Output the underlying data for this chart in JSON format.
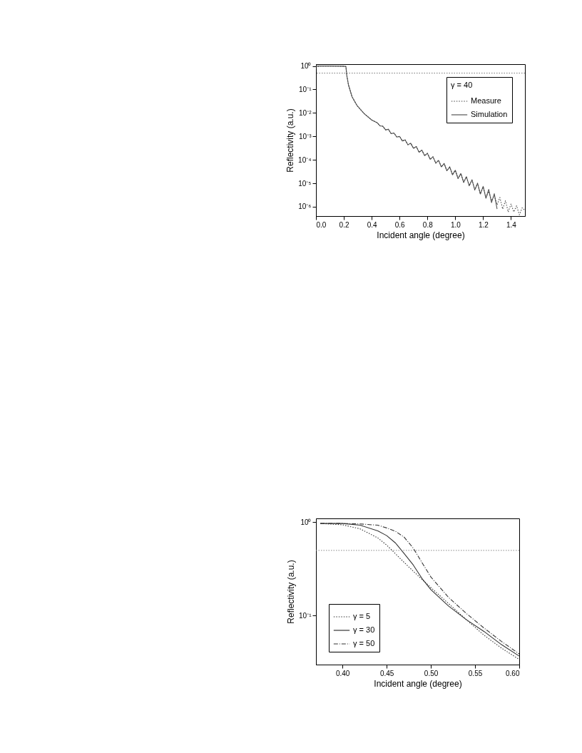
{
  "chart_data": [
    {
      "type": "line",
      "xlabel": "Incident angle (degree)",
      "ylabel": "Reflectivity (a.u.)",
      "legend_title": "γ = 40",
      "log": "y",
      "grid": false,
      "legend": "top right",
      "xlim": [
        0,
        1.5
      ],
      "ylim": [
        4e-07,
        1.2
      ],
      "xticks": [
        {
          "value": 0,
          "label": "0.0"
        },
        {
          "value": 0.2,
          "label": "0.2"
        },
        {
          "value": 0.4,
          "label": "0.4"
        },
        {
          "value": 0.6,
          "label": "0.6"
        },
        {
          "value": 0.8,
          "label": "0.8"
        },
        {
          "value": 1,
          "label": "1.0"
        },
        {
          "value": 1.2,
          "label": "1.2"
        },
        {
          "value": 1.4,
          "label": "1.4"
        }
      ],
      "yticks": [
        {
          "value": 1,
          "label": "10⁰"
        },
        {
          "value": 0.1,
          "label": "10⁻¹"
        },
        {
          "value": 0.01,
          "label": "10⁻²"
        },
        {
          "value": 0.001,
          "label": "10⁻³"
        },
        {
          "value": 0.0001,
          "label": "10⁻⁴"
        },
        {
          "value": 1e-05,
          "label": "10⁻⁵"
        },
        {
          "value": 1e-06,
          "label": "10⁻⁶"
        }
      ],
      "ref_lines": [
        {
          "axis": "y",
          "value": 0.5,
          "color": "#777777",
          "line_style": "dotted"
        }
      ],
      "series": [
        {
          "name": "Measure",
          "color": "#444444",
          "line_style": "dotted",
          "x": [
            0,
            0.02,
            0.1,
            0.2,
            0.215,
            0.221,
            0.233,
            0.259,
            0.294,
            0.346,
            0.4,
            0.44,
            0.46,
            0.48,
            0.5,
            0.52,
            0.54,
            0.56,
            0.58,
            0.6,
            0.62,
            0.64,
            0.66,
            0.68,
            0.7,
            0.72,
            0.74,
            0.76,
            0.78,
            0.8,
            0.82,
            0.84,
            0.86,
            0.88,
            0.9,
            0.92,
            0.94,
            0.96,
            0.98,
            1,
            1.02,
            1.04,
            1.06,
            1.08,
            1.1,
            1.12,
            1.14,
            1.16,
            1.18,
            1.2,
            1.22,
            1.24,
            1.26,
            1.28,
            1.3,
            1.32,
            1.34,
            1.36,
            1.38,
            1.4,
            1.42,
            1.44,
            1.46,
            1.48,
            1.5
          ],
          "values": [
            0.8,
            1,
            1,
            0.98,
            0.95,
            0.41,
            0.16,
            0.049,
            0.021,
            0.0093,
            0.005,
            0.0038,
            0.0028,
            0.0027,
            0.0019,
            0.002,
            0.0013,
            0.0014,
            0.00093,
            0.001,
            0.00064,
            0.00071,
            0.00044,
            0.00051,
            0.00031,
            0.00037,
            0.00021,
            0.00026,
            0.00015,
            0.00019,
            0.000105,
            0.000135,
            7.2e-05,
            9.5e-05,
            5e-05,
            6.9e-05,
            3.4e-05,
            5e-05,
            2.3e-05,
            3.6e-05,
            1.6e-05,
            2.6e-05,
            1.1e-05,
            1.9e-05,
            7.8e-06,
            1.4e-05,
            5.2e-06,
            1e-05,
            3.5e-06,
            7e-06,
            2.5e-06,
            4.5e-06,
            1.8e-06,
            3e-06,
            1.2e-06,
            2.5e-06,
            8e-07,
            1.8e-06,
            6e-07,
            1.3e-06,
            6e-07,
            1.1e-06,
            4.5e-07,
            9e-07,
            7e-07
          ]
        },
        {
          "name": "Simulation",
          "color": "#555555",
          "line_style": "solid",
          "x": [
            0,
            0.1,
            0.2,
            0.215,
            0.221,
            0.233,
            0.259,
            0.294,
            0.346,
            0.4,
            0.44,
            0.46,
            0.48,
            0.5,
            0.52,
            0.54,
            0.56,
            0.58,
            0.6,
            0.62,
            0.64,
            0.66,
            0.68,
            0.7,
            0.72,
            0.74,
            0.76,
            0.78,
            0.8,
            0.82,
            0.84,
            0.86,
            0.88,
            0.9,
            0.92,
            0.94,
            0.96,
            0.98,
            1,
            1.02,
            1.04,
            1.06,
            1.08,
            1.1,
            1.12,
            1.14,
            1.16,
            1.18,
            1.2,
            1.22,
            1.24,
            1.26,
            1.28,
            1.3
          ],
          "values": [
            1,
            1,
            0.98,
            0.95,
            0.41,
            0.16,
            0.049,
            0.021,
            0.0093,
            0.005,
            0.0038,
            0.0028,
            0.0027,
            0.0019,
            0.002,
            0.0013,
            0.0014,
            0.00093,
            0.001,
            0.00064,
            0.00071,
            0.00044,
            0.00051,
            0.00031,
            0.00037,
            0.00021,
            0.00026,
            0.00015,
            0.00019,
            0.000105,
            0.000135,
            7.2e-05,
            9.5e-05,
            5e-05,
            6.9e-05,
            3.4e-05,
            5e-05,
            2.3e-05,
            3.6e-05,
            1.6e-05,
            2.6e-05,
            1.1e-05,
            1.9e-05,
            7.8e-06,
            1.4e-05,
            5.2e-06,
            1e-05,
            3.5e-06,
            7.4e-06,
            2.3e-06,
            5.5e-06,
            1.5e-06,
            3.6e-06,
            8e-07
          ]
        }
      ]
    },
    {
      "type": "line",
      "xlabel": "Incident angle (degree)",
      "ylabel": "Reflectivity (a.u.)",
      "log": "y",
      "grid": false,
      "legend": "bottom left",
      "xlim": [
        0.37,
        0.6
      ],
      "ylim": [
        0.03,
        1.1
      ],
      "xticks": [
        {
          "value": 0.4,
          "label": "0.40"
        },
        {
          "value": 0.45,
          "label": "0.45"
        },
        {
          "value": 0.5,
          "label": "0.50"
        },
        {
          "value": 0.55,
          "label": "0.55"
        },
        {
          "value": 0.6,
          "label": "0.60"
        }
      ],
      "yticks": [
        {
          "value": 1,
          "label": "10⁰"
        },
        {
          "value": 0.1,
          "label": "10⁻¹"
        }
      ],
      "ref_lines": [
        {
          "axis": "y",
          "value": 0.5,
          "color": "#888888",
          "line_style": "dotted"
        }
      ],
      "x": [
        0.375,
        0.4,
        0.42,
        0.44,
        0.45,
        0.46,
        0.47,
        0.48,
        0.49,
        0.5,
        0.52,
        0.54,
        0.56,
        0.58,
        0.6
      ],
      "series": [
        {
          "name": "γ = 5",
          "color": "#333333",
          "line_style": "dotted",
          "values": [
            0.97,
            0.94,
            0.85,
            0.68,
            0.57,
            0.46,
            0.37,
            0.3,
            0.245,
            0.2,
            0.135,
            0.091,
            0.062,
            0.045,
            0.034
          ]
        },
        {
          "name": "γ = 30",
          "color": "#333333",
          "line_style": "solid",
          "values": [
            0.97,
            0.97,
            0.93,
            0.81,
            0.72,
            0.6,
            0.46,
            0.35,
            0.25,
            0.19,
            0.127,
            0.091,
            0.068,
            0.049,
            0.037
          ]
        },
        {
          "name": "γ = 50",
          "color": "#333333",
          "line_style": "dashed",
          "values": [
            0.97,
            0.97,
            0.96,
            0.93,
            0.87,
            0.8,
            0.69,
            0.53,
            0.37,
            0.26,
            0.157,
            0.106,
            0.074,
            0.053,
            0.039
          ]
        }
      ]
    }
  ]
}
